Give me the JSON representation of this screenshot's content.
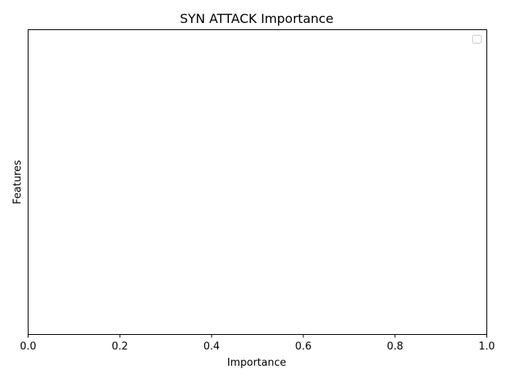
{
  "chart_data": {
    "type": "bar",
    "title": "SYN ATTACK Importance",
    "xlabel": "Importance",
    "ylabel": "Features",
    "xlim": [
      0.0,
      1.0
    ],
    "x_ticks": [
      0.0,
      0.2,
      0.4,
      0.6,
      0.8,
      1.0
    ],
    "x_tick_labels": [
      "0.0",
      "0.2",
      "0.4",
      "0.6",
      "0.8",
      "1.0"
    ],
    "categories": [],
    "values": [],
    "legend": {
      "entries": [],
      "placement": "top-right"
    },
    "grid": false
  }
}
